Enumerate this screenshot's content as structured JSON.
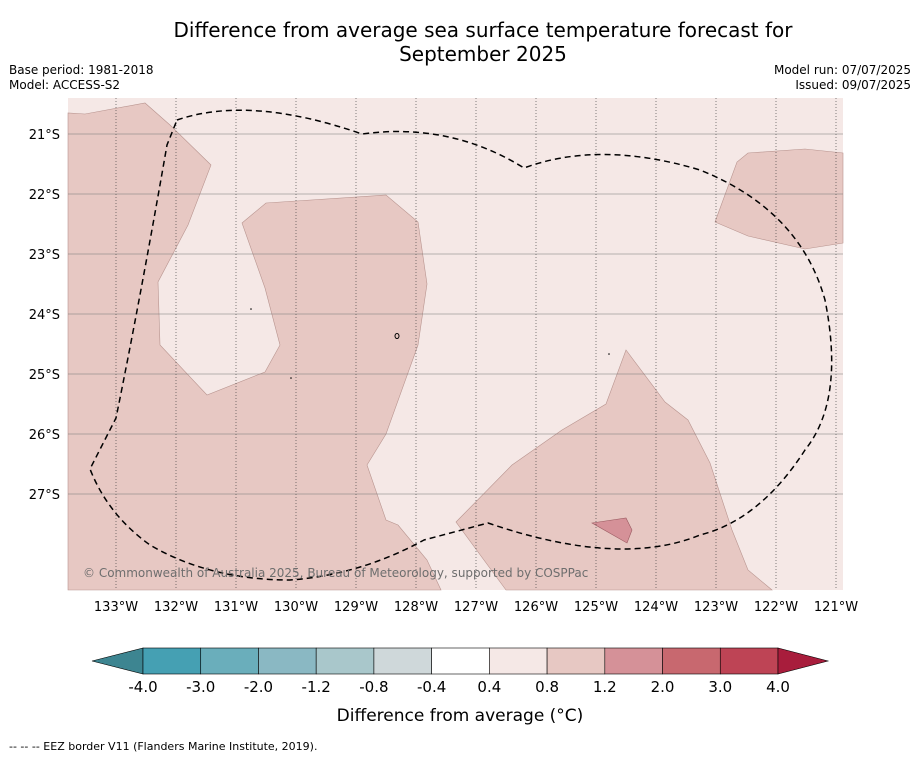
{
  "title_line1": "Difference from average sea surface temperature forecast for",
  "title_line2": "September 2025",
  "base_period": "Base period: 1981-2018",
  "model": "Model: ACCESS-S2",
  "model_run": "Model run: 07/07/2025",
  "issued": "Issued: 09/07/2025",
  "copyright": "© Commonwealth of Australia 2025, Bureau of Meteorology, supported by COSPPac",
  "footnote": "--  --  -- EEZ border V11 (Flanders Marine Institute, 2019).",
  "lat_labels": [
    "21°S",
    "22°S",
    "23°S",
    "24°S",
    "25°S",
    "26°S",
    "27°S"
  ],
  "lon_labels": [
    "133°W",
    "132°W",
    "131°W",
    "130°W",
    "129°W",
    "128°W",
    "127°W",
    "126°W",
    "125°W",
    "124°W",
    "123°W",
    "122°W",
    "121°W"
  ],
  "colorbar": {
    "title": "Difference from average (°C)",
    "tick_labels": [
      "-4.0",
      "-3.0",
      "-2.0",
      "-1.2",
      "-0.8",
      "-0.4",
      "0.4",
      "0.8",
      "1.2",
      "2.0",
      "3.0",
      "4.0"
    ],
    "colors": [
      "#45a0b3",
      "#6aaebb",
      "#8ab8c3",
      "#a9c7cb",
      "#cfd8da",
      "#ffffff",
      "#f5e8e6",
      "#e7c8c3",
      "#d59198",
      "#c8686f",
      "#be4455"
    ],
    "under_color": "#3d8591",
    "over_color": "#a81d3c"
  },
  "map_colors": {
    "band_0p4_0p8": "#f5e8e6",
    "band_0p8_1p2": "#e7c8c3",
    "band_1p2_2p0": "#d59198"
  }
}
